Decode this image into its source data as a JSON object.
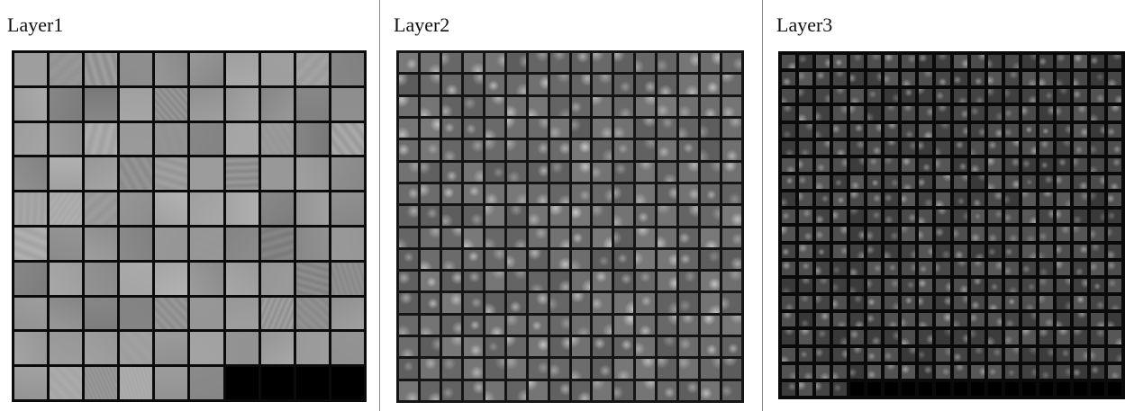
{
  "panels": [
    {
      "title": "Layer1",
      "columns": 10,
      "rows": 10,
      "filled_tiles": 96,
      "tile_tone": "light",
      "gap_color": "#0b0b0b",
      "empty_color": "#000000"
    },
    {
      "title": "Layer2",
      "columns": 16,
      "rows": 16,
      "filled_tiles": 256,
      "tile_tone": "medium",
      "gap_color": "#151515",
      "empty_color": "#000000"
    },
    {
      "title": "Layer3",
      "columns": 20,
      "rows": 20,
      "filled_tiles": 384,
      "tile_tone": "dark",
      "gap_color": "#0a0a0a",
      "empty_color": "#000000"
    }
  ]
}
